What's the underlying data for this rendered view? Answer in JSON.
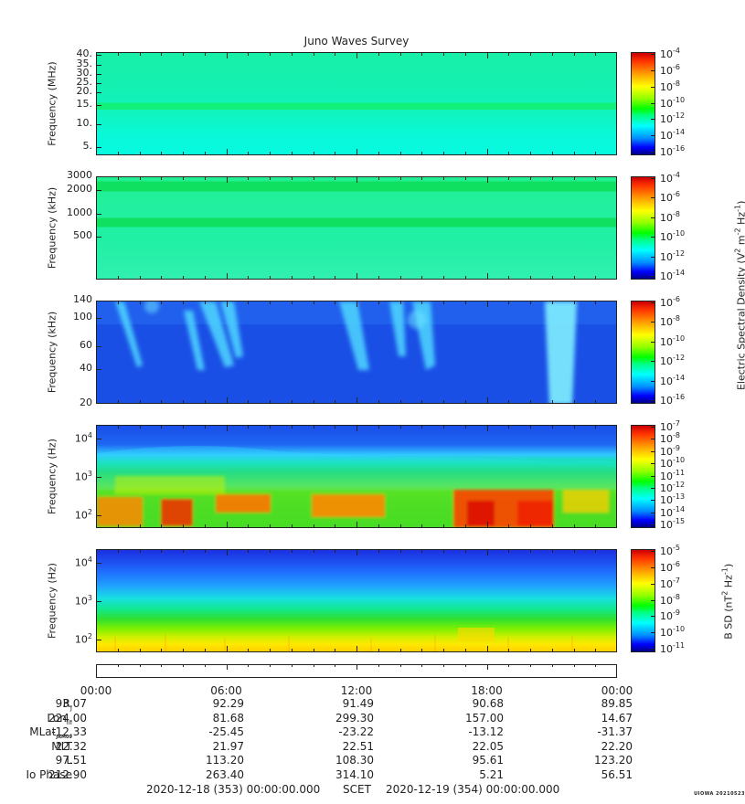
{
  "title": "Juno Waves Survey",
  "colors": {
    "rainbow": [
      "#00008b",
      "#0000ff",
      "#0090ff",
      "#00ffff",
      "#00ff88",
      "#00ff00",
      "#90ff00",
      "#ffff00",
      "#ffaa00",
      "#ff3300",
      "#cc0000"
    ]
  },
  "chart_data": [
    {
      "type": "heatmap",
      "name": "panel1",
      "ylabel": "Frequency (MHz)",
      "yticks": [
        "40.",
        "35.",
        "30.",
        "25.",
        "20.",
        "15.",
        "10.",
        "5."
      ],
      "ylim": [
        3.5,
        41
      ],
      "colorbar": {
        "exponents": [
          "-4",
          "-6",
          "-8",
          "-10",
          "-12",
          "-14",
          "-16"
        ]
      }
    },
    {
      "type": "heatmap",
      "name": "panel2",
      "ylabel": "Frequency (kHz)",
      "yticks": [
        "3000",
        "2000",
        "1000",
        "500"
      ],
      "yscale": "log",
      "colorbar": {
        "exponents": [
          "-4",
          "-6",
          "-8",
          "-10",
          "-12",
          "-14"
        ]
      }
    },
    {
      "type": "heatmap",
      "name": "panel3",
      "ylabel": "Frequency (kHz)",
      "yticks": [
        "140",
        "100",
        "60",
        "40",
        "20"
      ],
      "colorbar": {
        "exponents": [
          "-6",
          "-8",
          "-10",
          "-12",
          "-14",
          "-16"
        ]
      }
    },
    {
      "type": "heatmap",
      "name": "panel4",
      "ylabel": "Frequency (Hz)",
      "yticks": [
        {
          "base": "10",
          "exp": "4"
        },
        {
          "base": "10",
          "exp": "3"
        },
        {
          "base": "10",
          "exp": "2"
        }
      ],
      "yscale": "log",
      "colorbar": {
        "exponents": [
          "-7",
          "-8",
          "-9",
          "-10",
          "-11",
          "-12",
          "-13",
          "-14",
          "-15"
        ]
      }
    },
    {
      "type": "heatmap",
      "name": "panel5",
      "ylabel": "Frequency (Hz)",
      "yticks": [
        {
          "base": "10",
          "exp": "4"
        },
        {
          "base": "10",
          "exp": "3"
        },
        {
          "base": "10",
          "exp": "2"
        }
      ],
      "yscale": "log",
      "colorbar": {
        "exponents": [
          "-5",
          "-6",
          "-7",
          "-8",
          "-9",
          "-10",
          "-11"
        ]
      }
    }
  ],
  "side_labels": {
    "e_field": "Electric Spectral Density (V",
    "e_field_parts": [
      "Electric Spectral Density (V",
      "2",
      " m",
      "-2",
      " Hz",
      "-1",
      ")"
    ],
    "b_field_parts": [
      "B SD (nT",
      "2",
      " Hz",
      "-1",
      ")"
    ]
  },
  "time_axis": {
    "labels": [
      "00:00",
      "06:00",
      "12:00",
      "18:00",
      "00:00"
    ]
  },
  "ephemeris": [
    {
      "name": "R",
      "sub": "J",
      "values": [
        "93.07",
        "92.29",
        "91.49",
        "90.68",
        "89.85"
      ]
    },
    {
      "name": "Lon",
      "sub": "III",
      "values": [
        "224.00",
        "81.68",
        "299.30",
        "157.00",
        "14.67"
      ]
    },
    {
      "name": "MLat",
      "sub": "JRM09",
      "values": [
        "-12.33",
        "-25.45",
        "-23.22",
        "-13.12",
        "-31.37"
      ]
    },
    {
      "name": "MLT",
      "sub": "",
      "values": [
        "22.32",
        "21.97",
        "22.51",
        "22.05",
        "22.20"
      ]
    },
    {
      "name": "L",
      "sub": "",
      "values": [
        "97.51",
        "113.20",
        "108.30",
        "95.61",
        "123.20"
      ]
    },
    {
      "name": "Io Phase",
      "sub": "",
      "values": [
        "212.90",
        "263.40",
        "314.10",
        "5.21",
        "56.51"
      ]
    }
  ],
  "footer": {
    "start": "2020-12-18 (353) 00:00:00.000",
    "label": "SCET",
    "end": "2020-12-19 (354) 00:00:00.000"
  },
  "credit": "UIOWA 20210523"
}
